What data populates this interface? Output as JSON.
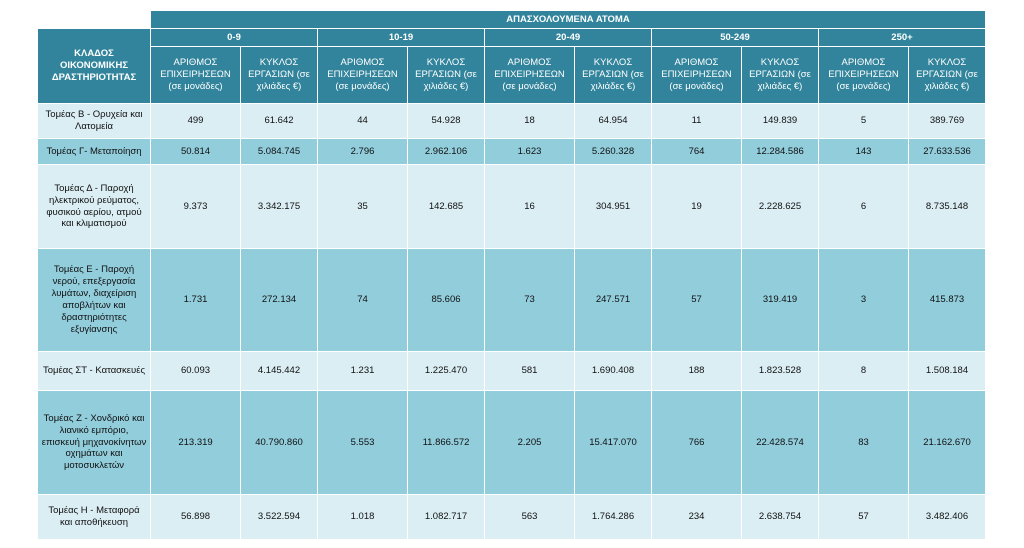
{
  "header": {
    "title": "ΑΠΑΣΧΟΛΟΥΜΕΝΑ ΑΤΟΜΑ",
    "sector_label": "ΚΛΑΔΟΣ ΟΙΚΟΝΟΜΙΚΗΣ ΔΡΑΣΤΗΡΙΟΤΗΤΑΣ",
    "groups": [
      "0-9",
      "10-19",
      "20-49",
      "50-249",
      "250+"
    ],
    "subheaders": [
      "ΑΡΙΘΜΟΣ ΕΠΙΧΕΙΡΗΣΕΩΝ (σε μονάδες)",
      "ΚΥΚΛΟΣ ΕΡΓΑΣΙΩΝ (σε χιλιάδες €)"
    ]
  },
  "table": {
    "rows": [
      {
        "sector": "Τομέας Β - Ορυχεία και Λατομεία",
        "values": [
          "499",
          "61.642",
          "44",
          "54.928",
          "18",
          "64.954",
          "11",
          "149.839",
          "5",
          "389.769"
        ]
      },
      {
        "sector": "Τομέας Γ- Μεταποίηση",
        "values": [
          "50.814",
          "5.084.745",
          "2.796",
          "2.962.106",
          "1.623",
          "5.260.328",
          "764",
          "12.284.586",
          "143",
          "27.633.536"
        ]
      },
      {
        "sector": "Τομέας Δ - Παροχή ηλεκτρικού ρεύματος, φυσικού αερίου, ατμού και κλιματισμού",
        "values": [
          "9.373",
          "3.342.175",
          "35",
          "142.685",
          "16",
          "304.951",
          "19",
          "2.228.625",
          "6",
          "8.735.148"
        ]
      },
      {
        "sector": "Τομέας Ε - Παροχή νερού, επεξεργασία λυμάτων, διαχείριση αποβλήτων και δραστηριότητες εξυγίανσης",
        "values": [
          "1.731",
          "272.134",
          "74",
          "85.606",
          "73",
          "247.571",
          "57",
          "319.419",
          "3",
          "415.873"
        ]
      },
      {
        "sector": "Τομέας ΣΤ - Κατασκευές",
        "values": [
          "60.093",
          "4.145.442",
          "1.231",
          "1.225.470",
          "581",
          "1.690.408",
          "188",
          "1.823.528",
          "8",
          "1.508.184"
        ]
      },
      {
        "sector": "Τομέας Ζ - Χονδρικό και λιανικό εμπόριο, επισκευή μηχανοκίνητων οχημάτων και μοτοσυκλετών",
        "values": [
          "213.319",
          "40.790.860",
          "5.553",
          "11.866.572",
          "2.205",
          "15.417.070",
          "766",
          "22.428.574",
          "83",
          "21.162.670"
        ]
      },
      {
        "sector": "Τομέας Η - Μεταφορά και αποθήκευση",
        "values": [
          "56.898",
          "3.522.594",
          "1.018",
          "1.082.717",
          "563",
          "1.764.286",
          "234",
          "2.638.754",
          "57",
          "3.482.406"
        ]
      }
    ]
  }
}
